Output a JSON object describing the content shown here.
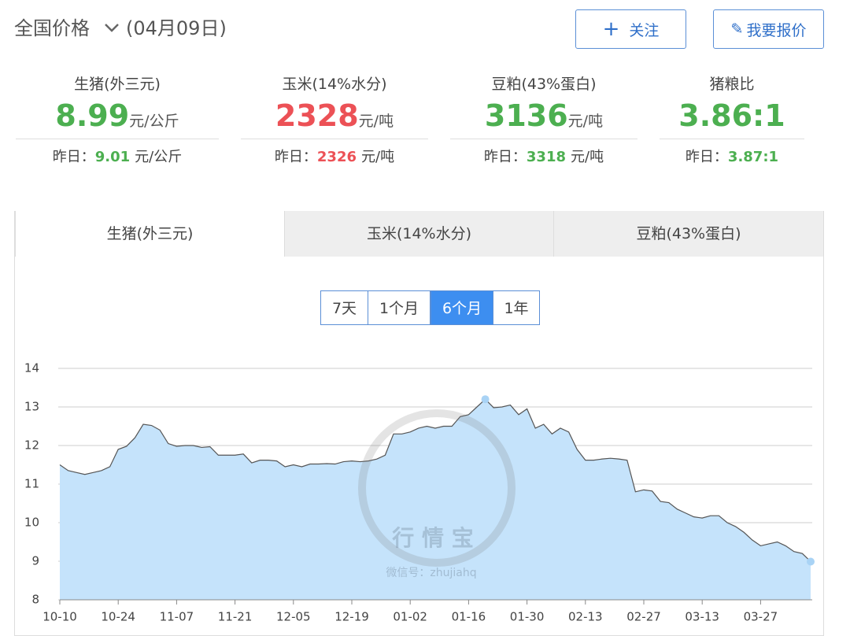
{
  "header": {
    "title": "全国价格",
    "date": "(04月09日)",
    "buttons": [
      "关注",
      "我要报价"
    ]
  },
  "yesterday_label": "昨日：",
  "prices": [
    {
      "name": "生猪(外三元)",
      "value": 8.99,
      "unit": "元/公斤",
      "yesterday": 9.01,
      "yesterday_unit": "元/公斤",
      "color": "#4caf50"
    },
    {
      "name": "玉米(14%水分)",
      "value": 2328,
      "unit": "元/吨",
      "yesterday": 2326,
      "yesterday_unit": "元/吨",
      "color": "#ec5156"
    },
    {
      "name": "豆粕(43%蛋白)",
      "value": 3136,
      "unit": "元/吨",
      "yesterday": 3318,
      "yesterday_unit": "元/吨",
      "color": "#4caf50"
    },
    {
      "name": "猪粮比",
      "value": "3.86:1",
      "yesterday": "3.87:1",
      "color": "#4caf50"
    }
  ],
  "tabs": [
    "生猪(外三元)",
    "玉米(14%水分)",
    "豆粕(43%蛋白)"
  ],
  "active_tab": 0,
  "ranges": [
    "7天",
    "1个月",
    "6个月",
    "1年"
  ],
  "active_range": 2,
  "watermark": {
    "name": "行 情 宝",
    "wechat": "微信号：zhujiahq"
  },
  "chart_data": {
    "type": "area",
    "color": "#c5e3fb",
    "line_color": "#555555",
    "grid": true,
    "ylim": [
      8,
      14
    ],
    "yticks": [
      8,
      9,
      10,
      11,
      12,
      13,
      14
    ],
    "categories": [
      "10-10",
      null,
      null,
      null,
      null,
      null,
      null,
      "10-24",
      null,
      null,
      null,
      null,
      null,
      null,
      "11-07",
      null,
      null,
      null,
      null,
      null,
      null,
      "11-21",
      null,
      null,
      null,
      null,
      null,
      null,
      "12-05",
      null,
      null,
      null,
      null,
      null,
      null,
      "12-19",
      null,
      null,
      null,
      null,
      null,
      null,
      "01-02",
      null,
      null,
      null,
      null,
      null,
      null,
      "01-16",
      null,
      null,
      null,
      null,
      null,
      null,
      "01-30",
      null,
      null,
      null,
      null,
      null,
      null,
      "02-13",
      null,
      null,
      null,
      null,
      null,
      null,
      "02-27",
      null,
      null,
      null,
      null,
      null,
      null,
      "03-13",
      null,
      null,
      null,
      null,
      null,
      null,
      "03-27",
      null,
      null,
      null,
      null,
      null,
      null
    ],
    "values": [
      11.5,
      11.35,
      11.3,
      11.25,
      11.3,
      11.35,
      11.45,
      11.9,
      11.98,
      12.2,
      12.55,
      12.52,
      12.4,
      12.05,
      11.98,
      12.0,
      12.0,
      11.95,
      11.97,
      11.75,
      11.75,
      11.75,
      11.78,
      11.55,
      11.62,
      11.62,
      11.6,
      11.45,
      11.5,
      11.45,
      11.52,
      11.52,
      11.53,
      11.52,
      11.58,
      11.6,
      11.58,
      11.6,
      11.65,
      11.75,
      12.3,
      12.3,
      12.35,
      12.45,
      12.5,
      12.45,
      12.5,
      12.5,
      12.75,
      12.8,
      13.0,
      13.2,
      12.98,
      13.0,
      13.05,
      12.8,
      12.95,
      12.45,
      12.55,
      12.3,
      12.45,
      12.35,
      11.9,
      11.62,
      11.62,
      11.65,
      11.67,
      11.65,
      11.62,
      10.8,
      10.85,
      10.82,
      10.55,
      10.52,
      10.35,
      10.25,
      10.15,
      10.12,
      10.18,
      10.18,
      10.0,
      9.9,
      9.75,
      9.55,
      9.4,
      9.45,
      9.5,
      9.4,
      9.25,
      9.2,
      8.99
    ]
  }
}
